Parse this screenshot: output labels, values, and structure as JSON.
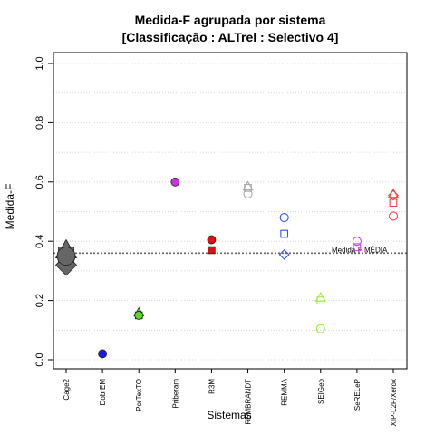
{
  "chart_data": {
    "type": "scatter",
    "title_line1": "Medida-F agrupada por sistema",
    "title_line2": "[Classificação : ALTrel : Selectivo 4]",
    "xlabel": "Sistemas",
    "ylabel": "Medida-F",
    "ylim": [
      0,
      1
    ],
    "yticks": [
      "0.0",
      "0.2",
      "0.4",
      "0.6",
      "0.8",
      "1.0"
    ],
    "grid": true,
    "categories": [
      "Cage2",
      "DobrEM",
      "PorTexTO",
      "Priberam",
      "R3M",
      "REMBRANDT",
      "REMMA",
      "SEIGeo",
      "SeRELeP",
      "XIP-L2F/Xerox"
    ],
    "reference_line": {
      "label": "Medida-F MÉDIA",
      "value": 0.36
    },
    "series": [
      {
        "category": "Cage2",
        "color": "#666666",
        "filled": true,
        "points": [
          {
            "shape": "triangle",
            "y": 0.37
          },
          {
            "shape": "square",
            "y": 0.355
          },
          {
            "shape": "diamond",
            "y": 0.32
          },
          {
            "shape": "circle",
            "y": 0.35
          }
        ]
      },
      {
        "category": "DobrEM",
        "color": "#1a1aee",
        "filled": true,
        "points": [
          {
            "shape": "circle",
            "y": 0.02
          }
        ]
      },
      {
        "category": "PorTexTO",
        "color": "#55dd22",
        "filled": true,
        "points": [
          {
            "shape": "triangle",
            "y": 0.16
          },
          {
            "shape": "square",
            "y": 0.15
          },
          {
            "shape": "circle",
            "y": 0.15
          }
        ]
      },
      {
        "category": "Priberam",
        "color": "#cc33dd",
        "filled": true,
        "points": [
          {
            "shape": "circle",
            "y": 0.6
          }
        ]
      },
      {
        "category": "R3M",
        "color": "#dd1111",
        "filled": true,
        "points": [
          {
            "shape": "circle",
            "y": 0.405
          },
          {
            "shape": "square",
            "y": 0.37
          }
        ]
      },
      {
        "category": "REMBRANDT",
        "color": "#aaaaaa",
        "filled": false,
        "points": [
          {
            "shape": "triangle",
            "y": 0.585
          },
          {
            "shape": "square",
            "y": 0.58
          },
          {
            "shape": "circle",
            "y": 0.56
          }
        ]
      },
      {
        "category": "REMMA",
        "color": "#3355ee",
        "filled": false,
        "points": [
          {
            "shape": "circle",
            "y": 0.48
          },
          {
            "shape": "square",
            "y": 0.425
          },
          {
            "shape": "diamond",
            "y": 0.355
          }
        ]
      },
      {
        "category": "SEIGeo",
        "color": "#99ee44",
        "filled": false,
        "points": [
          {
            "shape": "triangle",
            "y": 0.21
          },
          {
            "shape": "square",
            "y": 0.2
          },
          {
            "shape": "circle",
            "y": 0.105
          }
        ]
      },
      {
        "category": "SeRELeP",
        "color": "#cc44ee",
        "filled": false,
        "points": [
          {
            "shape": "circle",
            "y": 0.4
          },
          {
            "shape": "square",
            "y": 0.38
          }
        ]
      },
      {
        "category": "XIP-L2F/Xerox",
        "color": "#ee4444",
        "filled": false,
        "points": [
          {
            "shape": "triangle",
            "y": 0.56
          },
          {
            "shape": "diamond",
            "y": 0.555
          },
          {
            "shape": "square",
            "y": 0.53
          },
          {
            "shape": "circle",
            "y": 0.485
          }
        ]
      }
    ]
  }
}
